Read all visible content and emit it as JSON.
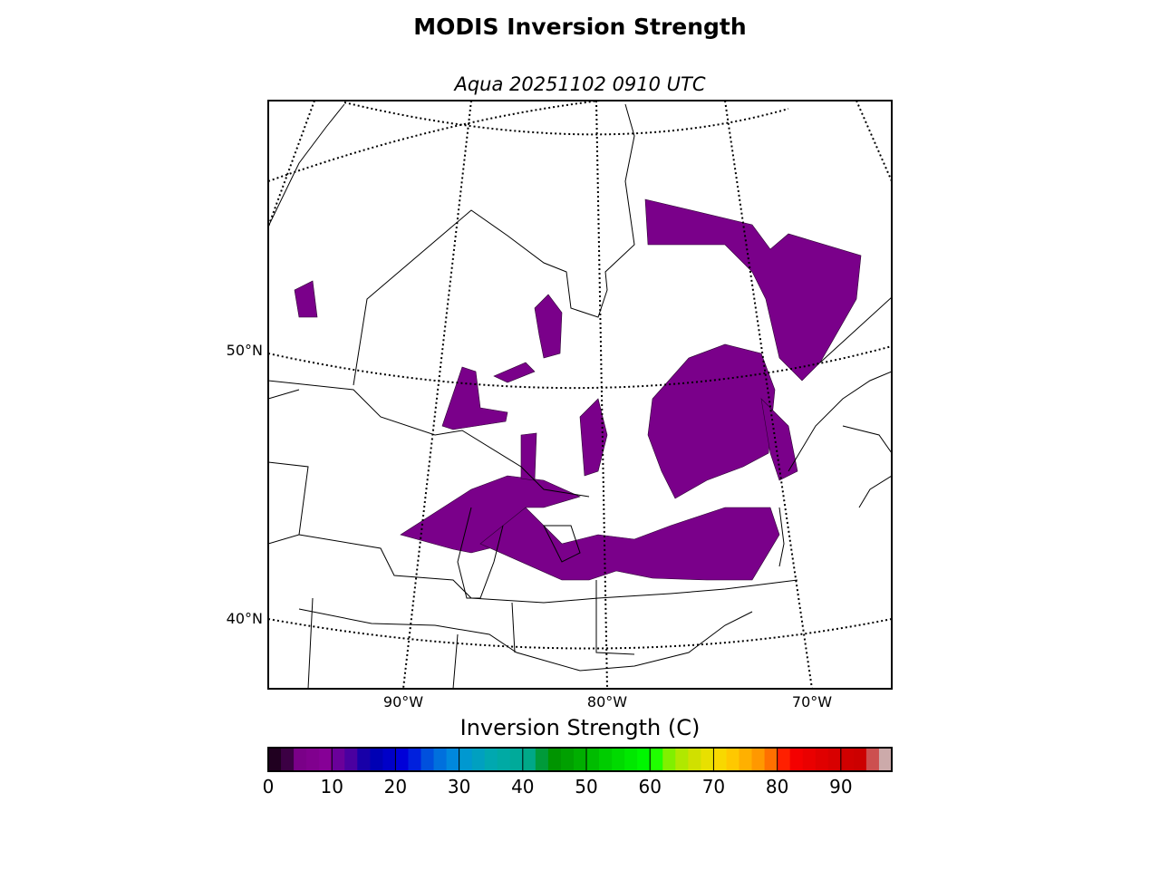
{
  "title": "MODIS Inversion Strength",
  "subtitle": "Aqua 20251102 0910 UTC",
  "map": {
    "lat_labels": [
      "50°N",
      "40°N"
    ],
    "lon_labels": [
      "90°W",
      "80°W",
      "70°W"
    ]
  },
  "colorbar": {
    "label": "Inversion Strength (C)",
    "lim": [
      0,
      98
    ],
    "ticks": [
      0,
      10,
      20,
      30,
      40,
      50,
      60,
      70,
      80,
      90
    ],
    "colors": [
      "#200020",
      "#3c0044",
      "#7a0088",
      "#80008e",
      "#860096",
      "#6a009a",
      "#4a00a0",
      "#1800a8",
      "#0000b4",
      "#0000c8",
      "#0000d8",
      "#0020dd",
      "#0050dd",
      "#0070dd",
      "#0088dd",
      "#0098d0",
      "#00a0c0",
      "#00a8b0",
      "#00aaa4",
      "#00aa9a",
      "#00a888",
      "#009a3a",
      "#009400",
      "#00a000",
      "#00ae00",
      "#00bc00",
      "#00cc00",
      "#00da00",
      "#00e800",
      "#00f600",
      "#20ff00",
      "#80f000",
      "#b0e800",
      "#d0e000",
      "#e8e000",
      "#f8d800",
      "#ffc800",
      "#ffb000",
      "#ff9800",
      "#ff7000",
      "#ff2000",
      "#f40000",
      "#ea0000",
      "#e00000",
      "#d80000",
      "#d00000",
      "#cc0000",
      "#cc5050",
      "#ccaaaa"
    ]
  }
}
